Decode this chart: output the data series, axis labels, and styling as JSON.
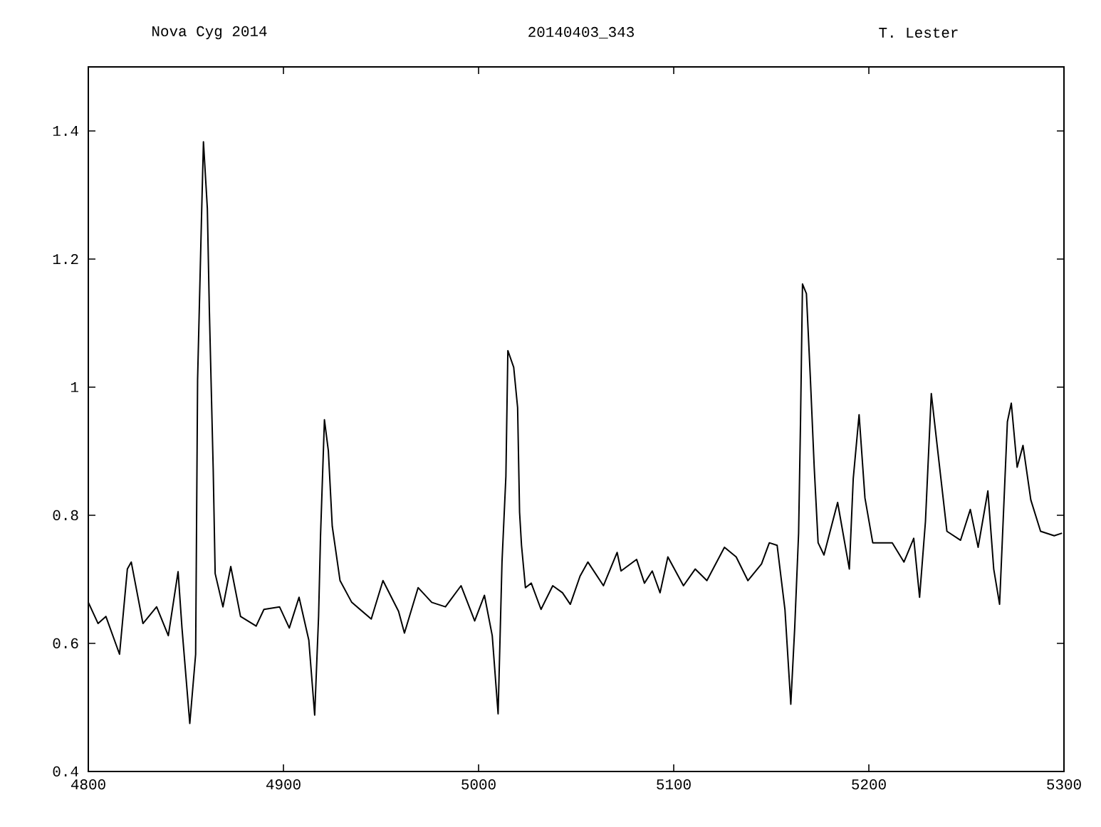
{
  "chart_data": {
    "type": "line",
    "title": "Nova Cyg 2014",
    "subtitle": "20140403_343",
    "annotations": [
      "T. Lester"
    ],
    "color": "#000000",
    "marker": "none",
    "line_style": "solid",
    "xlim": [
      4800,
      5300
    ],
    "xticks": [
      4800,
      4900,
      5000,
      5100,
      5200,
      5300
    ],
    "ylim": [
      0.4,
      1.5
    ],
    "yticks": [
      0.4,
      0.6,
      0.8,
      1,
      1.2,
      1.4
    ],
    "x": [
      4800,
      4805,
      4809,
      4816,
      4820,
      4822,
      4828,
      4835,
      4841,
      4846,
      4848,
      4852,
      4855,
      4856,
      4858,
      4859,
      4861,
      4862,
      4864,
      4865,
      4869,
      4873,
      4878,
      4886,
      4890,
      4898,
      4903,
      4908,
      4913,
      4916,
      4918,
      4919,
      4921,
      4923,
      4925,
      4929,
      4935,
      4945,
      4951,
      4959,
      4962,
      4969,
      4976,
      4983,
      4991,
      4998,
      5003,
      5007,
      5010,
      5012,
      5014,
      5015,
      5018,
      5020,
      5021,
      5022,
      5024,
      5027,
      5032,
      5038,
      5043,
      5047,
      5052,
      5056,
      5064,
      5071,
      5073,
      5081,
      5085,
      5089,
      5093,
      5097,
      5105,
      5111,
      5117,
      5126,
      5132,
      5138,
      5145,
      5149,
      5153,
      5157,
      5160,
      5162,
      5164,
      5165,
      5166,
      5168,
      5170,
      5172,
      5174,
      5177,
      5184,
      5190,
      5192,
      5195,
      5198,
      5202,
      5212,
      5218,
      5223,
      5226,
      5229,
      5232,
      5235,
      5240,
      5247,
      5252,
      5256,
      5261,
      5264,
      5267,
      5271,
      5273,
      5276,
      5279,
      5283,
      5288,
      5295,
      5299
    ],
    "values": [
      0.664,
      0.631,
      0.642,
      0.583,
      0.716,
      0.727,
      0.631,
      0.657,
      0.612,
      0.712,
      0.624,
      0.475,
      0.583,
      1.012,
      1.264,
      1.383,
      1.279,
      1.124,
      0.872,
      0.709,
      0.657,
      0.72,
      0.642,
      0.627,
      0.653,
      0.657,
      0.624,
      0.672,
      0.605,
      0.488,
      0.642,
      0.768,
      0.949,
      0.901,
      0.783,
      0.698,
      0.664,
      0.638,
      0.698,
      0.65,
      0.616,
      0.687,
      0.664,
      0.657,
      0.69,
      0.635,
      0.675,
      0.612,
      0.49,
      0.727,
      0.861,
      1.057,
      1.031,
      0.968,
      0.805,
      0.753,
      0.687,
      0.694,
      0.653,
      0.69,
      0.679,
      0.661,
      0.705,
      0.727,
      0.69,
      0.742,
      0.713,
      0.731,
      0.694,
      0.713,
      0.679,
      0.735,
      0.69,
      0.716,
      0.698,
      0.75,
      0.735,
      0.698,
      0.724,
      0.757,
      0.753,
      0.653,
      0.505,
      0.624,
      0.772,
      0.95,
      1.161,
      1.146,
      1.016,
      0.875,
      0.757,
      0.738,
      0.82,
      0.716,
      0.857,
      0.957,
      0.827,
      0.757,
      0.757,
      0.727,
      0.764,
      0.672,
      0.79,
      0.99,
      0.909,
      0.775,
      0.761,
      0.809,
      0.75,
      0.838,
      0.716,
      0.661,
      0.946,
      0.975,
      0.875,
      0.909,
      0.824,
      0.775,
      0.768,
      0.772
    ]
  }
}
